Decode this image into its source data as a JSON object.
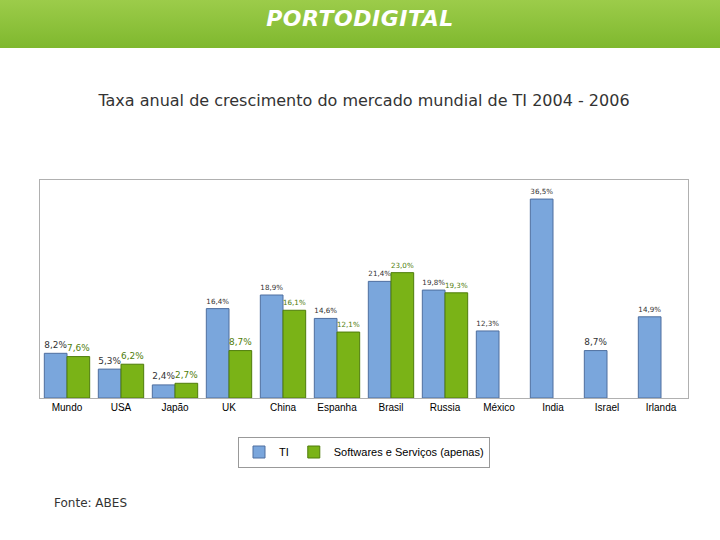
{
  "header": {
    "logo": "PORTODIGITAL"
  },
  "chart_data": {
    "type": "bar",
    "title": "Taxa anual de crescimento do mercado mundial de TI 2004 - 2006",
    "source": "Fonte: ABES",
    "categories": [
      "Mundo",
      "USA",
      "Japão",
      "UK",
      "China",
      "Espanha",
      "Brasil",
      "Russia",
      "México",
      "India",
      "Israel",
      "Irlanda"
    ],
    "series": [
      {
        "name": "TI",
        "color": "#7aa6dc",
        "values": [
          8.2,
          5.3,
          2.4,
          16.4,
          18.9,
          14.6,
          21.4,
          19.8,
          12.3,
          36.5,
          8.7,
          14.9
        ],
        "value_labels": [
          "8,2%",
          "5,3%",
          "2,4%",
          "16,4%",
          "18,9%",
          "14,6%",
          "21,4%",
          "19,8%",
          "12,3%",
          "36,5%",
          "8,7%",
          "14,9%"
        ]
      },
      {
        "name": "Softwares e Serviços (apenas)",
        "color": "#7ab317",
        "values": [
          7.6,
          6.2,
          2.7,
          8.7,
          16.1,
          12.1,
          23.0,
          19.3,
          null,
          null,
          null,
          null
        ],
        "value_labels": [
          "7,6%",
          "6,2%",
          "2,7%",
          "8,7%",
          "16,1%",
          "12,1%",
          "23,0%",
          "19,3%",
          null,
          null,
          null,
          null
        ]
      }
    ],
    "ylim": [
      0,
      40
    ],
    "tick_labels": "x",
    "grid": false,
    "legend": "bottom",
    "data_labels": true
  }
}
